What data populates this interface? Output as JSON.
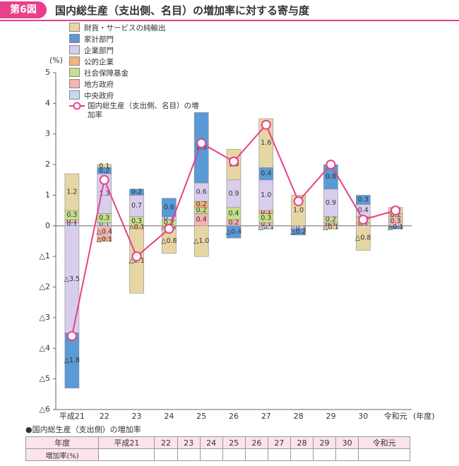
{
  "header": {
    "badge": "第6図",
    "title": "国内総生産（支出側、名目）の増加率に対する寄与度"
  },
  "chart_data": {
    "type": "bar",
    "stacked": true,
    "y_label": "(%)",
    "x_label": "(年度)",
    "categories": [
      "平成21",
      "22",
      "23",
      "24",
      "25",
      "26",
      "27",
      "28",
      "29",
      "30",
      "令和元"
    ],
    "ylim": [
      -6,
      5
    ],
    "yticks": [
      {
        "value": -6,
        "label": "△6"
      },
      {
        "value": -5,
        "label": "△5"
      },
      {
        "value": -4,
        "label": "△4"
      },
      {
        "value": -3,
        "label": "△3"
      },
      {
        "value": -2,
        "label": "△2"
      },
      {
        "value": -1,
        "label": "△1"
      },
      0,
      1,
      2,
      3,
      4,
      5
    ],
    "grid": false,
    "series": [
      {
        "name": "財貨・サービスの純輸出",
        "color": "#e6d6a4",
        "values": [
          1.2,
          0.1,
          -2.1,
          -0.8,
          -1.0,
          1.0,
          1.6,
          1.0,
          -0.1,
          -0.8,
          0.2
        ],
        "value_labels": [
          "1.2",
          "0.1",
          "△2.1",
          "△0.8",
          "△1.0",
          "1.0",
          "1.6",
          "1.0",
          "△0.1",
          "△0.8",
          "0.2"
        ]
      },
      {
        "name": "家計部門",
        "color": "#5a9ad6",
        "values": [
          -1.8,
          0.2,
          0.2,
          0.6,
          2.3,
          -0.4,
          0.4,
          -0.2,
          0.8,
          0.3,
          -0.1
        ],
        "value_labels": [
          "△1.8",
          "0.2",
          "0.2",
          "0.6",
          "2.3",
          "△0.4",
          "0.4",
          "△0.2",
          "0.8",
          "0.3",
          "△0.1"
        ]
      },
      {
        "name": "企業部門",
        "color": "#d9cdee",
        "values": [
          -3.5,
          1.3,
          0.7,
          0.1,
          0.6,
          0.9,
          1.0,
          -0.1,
          0.9,
          0.4,
          0
        ],
        "value_labels": [
          "△3.5",
          "1.3",
          "0.7",
          "0.1",
          "0.6",
          "0.9",
          "1.0",
          "△0.1",
          "0.9",
          "0.4",
          null
        ]
      },
      {
        "name": "公的企業",
        "color": "#f4b27a",
        "values": [
          0,
          -0.1,
          -0.1,
          0,
          0.2,
          0,
          0.1,
          0,
          0,
          0,
          0
        ],
        "value_labels": [
          null,
          "△0.1",
          "△0.1",
          null,
          "0.2",
          null,
          "0.1",
          null,
          null,
          null,
          null
        ]
      },
      {
        "name": "社会保障基金",
        "color": "#c6df8a",
        "values": [
          0.3,
          0.3,
          0.3,
          0.2,
          0.2,
          0.4,
          0.3,
          0,
          0.2,
          0.2,
          0.1
        ],
        "value_labels": [
          "0.3",
          "0.3",
          "0.3",
          "0.2",
          "0.2",
          "0.4",
          "0.3",
          null,
          "0.2",
          "0.2",
          "0.1"
        ]
      },
      {
        "name": "地方政府",
        "color": "#f5b3b3",
        "values": [
          0.1,
          -0.4,
          0,
          -0.1,
          0.4,
          0.2,
          0.1,
          0,
          0.1,
          0.1,
          0.3
        ],
        "value_labels": [
          "0.1",
          "△0.4",
          null,
          "△0.1",
          "0.4",
          "0.2",
          "0.1",
          null,
          "0.1",
          "0.1",
          "0.3"
        ]
      },
      {
        "name": "中央政府",
        "color": "#c6d9f1",
        "values": [
          0.1,
          0.1,
          0,
          0,
          0,
          0,
          -0.1,
          0,
          0,
          0,
          0
        ],
        "value_labels": [
          "0.1",
          "0.1",
          null,
          null,
          null,
          null,
          "△0.1",
          null,
          null,
          null,
          null
        ]
      },
      {
        "name": "国内総生産（支出側、名目）の増加率",
        "type": "line",
        "color": "#e8408a",
        "values": [
          -3.6,
          1.5,
          -1.0,
          -0.1,
          2.7,
          2.1,
          3.3,
          0.8,
          2.0,
          0.2,
          0.5
        ],
        "value_labels": [
          "△3.6",
          "1.5",
          "△1.0",
          "△0.1",
          "2.7",
          "2.1",
          "3.3",
          "0.8",
          "2.0",
          "0.2",
          "0.5"
        ]
      }
    ]
  },
  "table": {
    "title": "●国内総生産（支出側）の増加率",
    "row_headers": [
      "年度",
      "増加率(%)"
    ]
  }
}
